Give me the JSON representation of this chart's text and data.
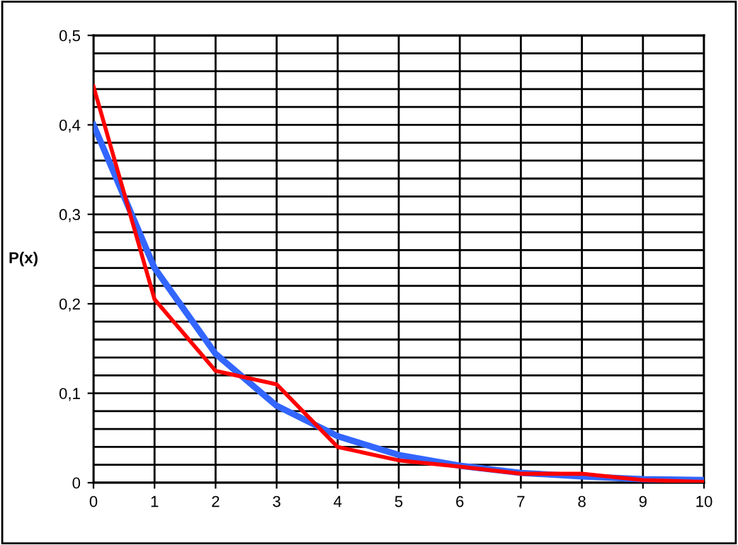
{
  "chart_data": {
    "type": "line",
    "ylabel": "P(x)",
    "x": [
      0,
      1,
      2,
      3,
      4,
      5,
      6,
      7,
      8,
      9,
      10
    ],
    "series": [
      {
        "color": "#3366ff",
        "values": [
          0.4,
          0.24,
          0.144,
          0.086,
          0.052,
          0.031,
          0.019,
          0.011,
          0.007,
          0.004,
          0.003
        ]
      },
      {
        "color": "#ff0000",
        "values": [
          0.443,
          0.205,
          0.125,
          0.11,
          0.04,
          0.025,
          0.018,
          0.01,
          0.01,
          0.003,
          0.001
        ]
      }
    ],
    "xlim": [
      0,
      10
    ],
    "xticks": [
      0,
      1,
      2,
      3,
      4,
      5,
      6,
      7,
      8,
      9,
      10
    ],
    "ylim": [
      0,
      0.5
    ],
    "yticks": [
      {
        "value": 0,
        "label": "0"
      },
      {
        "value": 0.02,
        "label": null
      },
      {
        "value": 0.04,
        "label": null
      },
      {
        "value": 0.06,
        "label": null
      },
      {
        "value": 0.08,
        "label": null
      },
      {
        "value": 0.1,
        "label": "0,1"
      },
      {
        "value": 0.12,
        "label": null
      },
      {
        "value": 0.14,
        "label": null
      },
      {
        "value": 0.16,
        "label": null
      },
      {
        "value": 0.18,
        "label": null
      },
      {
        "value": 0.2,
        "label": "0,2"
      },
      {
        "value": 0.22,
        "label": null
      },
      {
        "value": 0.24,
        "label": null
      },
      {
        "value": 0.26,
        "label": null
      },
      {
        "value": 0.28,
        "label": null
      },
      {
        "value": 0.3,
        "label": "0,3"
      },
      {
        "value": 0.32,
        "label": null
      },
      {
        "value": 0.34,
        "label": null
      },
      {
        "value": 0.36,
        "label": null
      },
      {
        "value": 0.38,
        "label": null
      },
      {
        "value": 0.4,
        "label": "0,4"
      },
      {
        "value": 0.42,
        "label": null
      },
      {
        "value": 0.44,
        "label": null
      },
      {
        "value": 0.46,
        "label": null
      },
      {
        "value": 0.48,
        "label": null
      },
      {
        "value": 0.5,
        "label": "0,5"
      }
    ],
    "grid": true,
    "marker": "none",
    "line_style": "solid"
  }
}
